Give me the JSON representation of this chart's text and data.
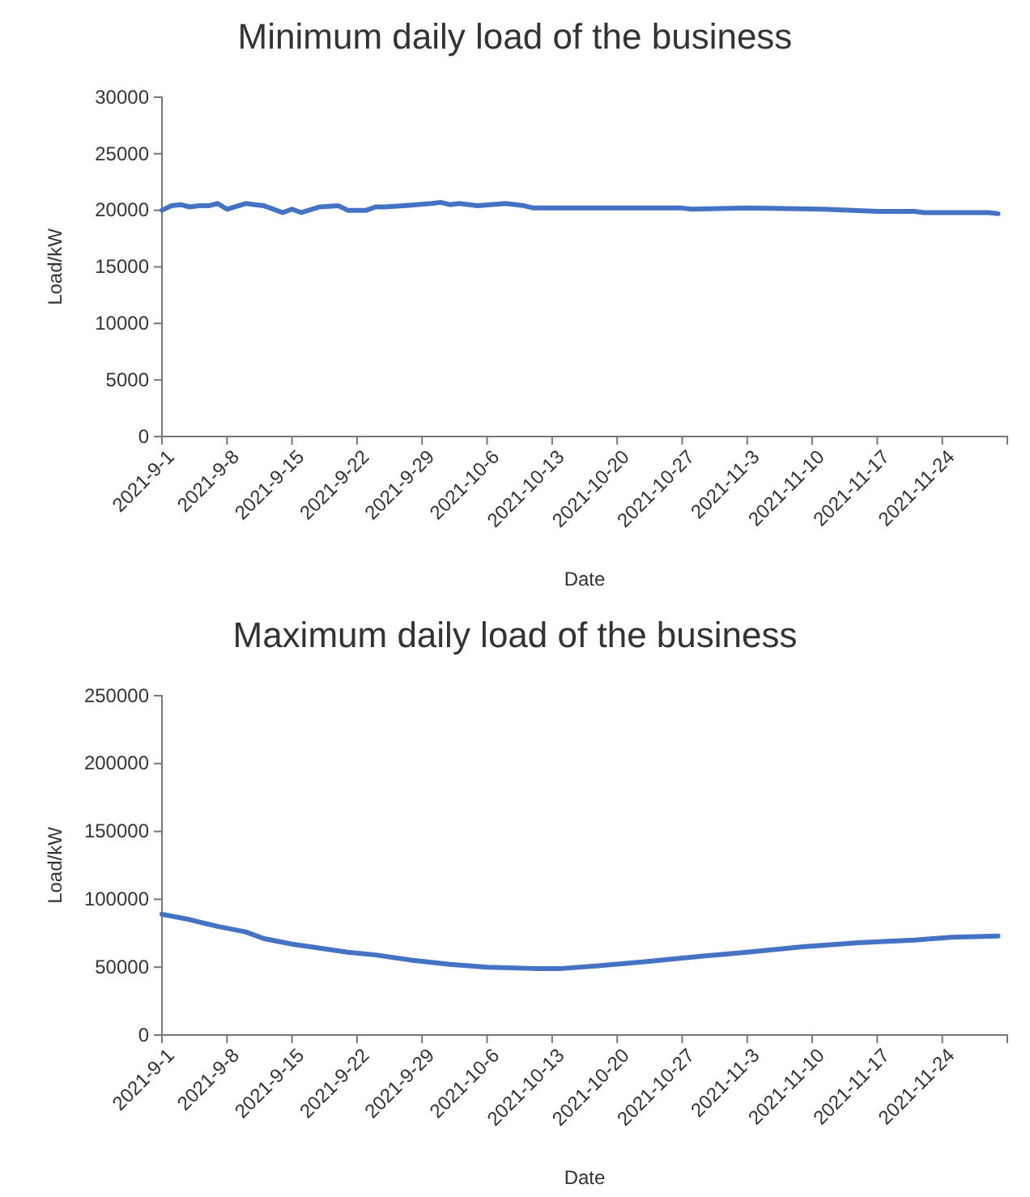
{
  "chart_data": [
    {
      "type": "line",
      "title": "Minimum daily load of the business",
      "xlabel": "Date",
      "ylabel": "Load/kW",
      "grid": false,
      "marker": "none",
      "line_style": "solid",
      "xlim": [
        "2021-09-01",
        "2021-12-01"
      ],
      "xticks": [
        {
          "value": "2021-09-01",
          "label": "2021-9-1"
        },
        {
          "value": "2021-09-08",
          "label": "2021-9-8"
        },
        {
          "value": "2021-09-15",
          "label": "2021-9-15"
        },
        {
          "value": "2021-09-22",
          "label": "2021-9-22"
        },
        {
          "value": "2021-09-29",
          "label": "2021-9-29"
        },
        {
          "value": "2021-10-06",
          "label": "2021-10-6"
        },
        {
          "value": "2021-10-13",
          "label": "2021-10-13"
        },
        {
          "value": "2021-10-20",
          "label": "2021-10-20"
        },
        {
          "value": "2021-10-27",
          "label": "2021-10-27"
        },
        {
          "value": "2021-11-03",
          "label": "2021-11-3"
        },
        {
          "value": "2021-11-10",
          "label": "2021-11-10"
        },
        {
          "value": "2021-11-17",
          "label": "2021-11-17"
        },
        {
          "value": "2021-11-24",
          "label": "2021-11-24"
        },
        {
          "value": "2021-12-01",
          "label": null
        }
      ],
      "ylim": [
        0,
        30000
      ],
      "yticks": [
        0,
        5000,
        10000,
        15000,
        20000,
        25000,
        30000
      ],
      "series": [
        {
          "color": "#4472c4",
          "x": [
            "2021-09-01",
            "2021-09-02",
            "2021-09-03",
            "2021-09-04",
            "2021-09-05",
            "2021-09-06",
            "2021-09-07",
            "2021-09-08",
            "2021-09-10",
            "2021-09-11",
            "2021-09-12",
            "2021-09-14",
            "2021-09-15",
            "2021-09-16",
            "2021-09-18",
            "2021-09-20",
            "2021-09-21",
            "2021-09-23",
            "2021-09-24",
            "2021-09-25",
            "2021-09-27",
            "2021-09-30",
            "2021-10-01",
            "2021-10-02",
            "2021-10-03",
            "2021-10-05",
            "2021-10-08",
            "2021-10-10",
            "2021-10-11",
            "2021-10-27",
            "2021-10-28",
            "2021-11-03",
            "2021-11-11",
            "2021-11-17",
            "2021-11-21",
            "2021-11-22",
            "2021-11-29",
            "2021-11-30"
          ],
          "values": [
            20000,
            20400,
            20500,
            20300,
            20400,
            20400,
            20600,
            20100,
            20600,
            20500,
            20400,
            19800,
            20100,
            19800,
            20300,
            20400,
            20000,
            20000,
            20300,
            20300,
            20400,
            20600,
            20700,
            20500,
            20600,
            20400,
            20600,
            20400,
            20200,
            20200,
            20100,
            20200,
            20100,
            19900,
            19900,
            19800,
            19800,
            19700
          ]
        }
      ]
    },
    {
      "type": "line",
      "title": "Maximum daily load of the business",
      "xlabel": "Date",
      "ylabel": "Load/kW",
      "grid": false,
      "marker": "none",
      "line_style": "solid",
      "xlim": [
        "2021-09-01",
        "2021-12-01"
      ],
      "xticks": [
        {
          "value": "2021-09-01",
          "label": "2021-9-1"
        },
        {
          "value": "2021-09-08",
          "label": "2021-9-8"
        },
        {
          "value": "2021-09-15",
          "label": "2021-9-15"
        },
        {
          "value": "2021-09-22",
          "label": "2021-9-22"
        },
        {
          "value": "2021-09-29",
          "label": "2021-9-29"
        },
        {
          "value": "2021-10-06",
          "label": "2021-10-6"
        },
        {
          "value": "2021-10-13",
          "label": "2021-10-13"
        },
        {
          "value": "2021-10-20",
          "label": "2021-10-20"
        },
        {
          "value": "2021-10-27",
          "label": "2021-10-27"
        },
        {
          "value": "2021-11-03",
          "label": "2021-11-3"
        },
        {
          "value": "2021-11-10",
          "label": "2021-11-10"
        },
        {
          "value": "2021-11-17",
          "label": "2021-11-17"
        },
        {
          "value": "2021-11-24",
          "label": "2021-11-24"
        },
        {
          "value": "2021-12-01",
          "label": null
        }
      ],
      "ylim": [
        0,
        250000
      ],
      "yticks": [
        0,
        50000,
        100000,
        150000,
        200000,
        250000
      ],
      "series": [
        {
          "color": "#4472c4",
          "x": [
            "2021-09-01",
            "2021-09-04",
            "2021-09-07",
            "2021-09-10",
            "2021-09-12",
            "2021-09-15",
            "2021-09-18",
            "2021-09-21",
            "2021-09-24",
            "2021-09-28",
            "2021-10-02",
            "2021-10-06",
            "2021-10-11",
            "2021-10-14",
            "2021-10-18",
            "2021-10-23",
            "2021-10-29",
            "2021-11-03",
            "2021-11-09",
            "2021-11-15",
            "2021-11-21",
            "2021-11-25",
            "2021-11-30"
          ],
          "values": [
            89000,
            85000,
            80000,
            76000,
            71000,
            67000,
            64000,
            61000,
            59000,
            55000,
            52000,
            50000,
            49000,
            49000,
            51000,
            54000,
            58000,
            61000,
            65000,
            68000,
            70000,
            72000,
            73000
          ]
        }
      ]
    }
  ]
}
